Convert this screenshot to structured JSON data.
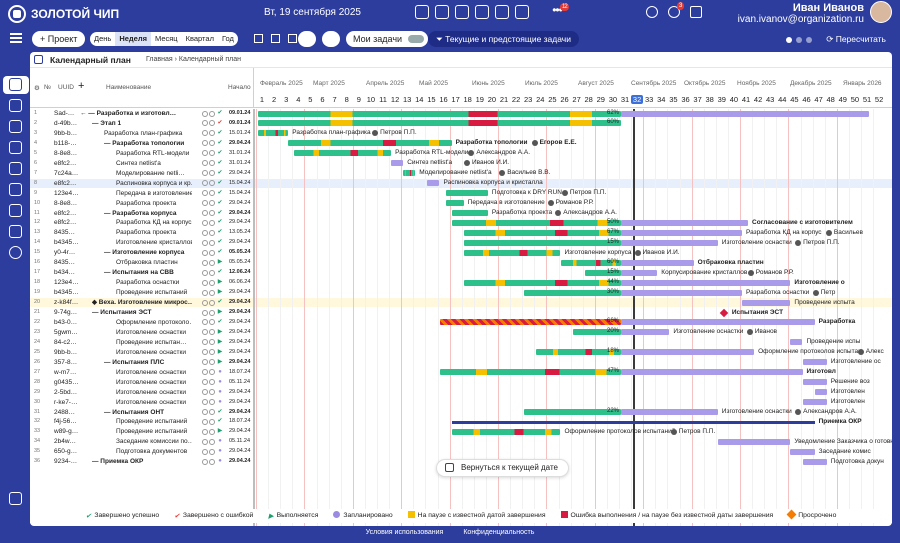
{
  "header": {
    "brand": "ЗОЛОТОЙ ЧИП",
    "date": "Вт, 19 сентября 2025",
    "more_badge": "12",
    "bell_badge": "3",
    "user_name": "Иван Иванов",
    "user_email": "ivan.ivanov@organization.ru"
  },
  "toolbar": {
    "project_btn": "+ Проект",
    "periods": [
      "День",
      "Неделя",
      "Месяц",
      "Квартал",
      "Год"
    ],
    "active_period": "Неделя",
    "my_tasks": "Мои задачи",
    "filter": "Текущие и предстоящие задачи",
    "recalc": "Пересчитать"
  },
  "page": {
    "title": "Календарный план",
    "crumb_home": "Главная",
    "crumb_sep": "›",
    "crumb_current": "Календарный план"
  },
  "columns": {
    "uuid": "UUID",
    "name": "Наименование",
    "start": "Начало"
  },
  "months": [
    "Февраль 2025",
    "Март 2025",
    "Апрель 2025",
    "Май 2025",
    "Июнь 2025",
    "Июль 2025",
    "Август 2025",
    "Сентябрь 2025",
    "Октябрь 2025",
    "Ноябрь 2025",
    "Декабрь 2025",
    "Январь 2026"
  ],
  "weeks": [
    "1",
    "2",
    "3",
    "4",
    "5",
    "6",
    "7",
    "8",
    "9",
    "10",
    "11",
    "12",
    "13",
    "14",
    "15",
    "16",
    "17",
    "18",
    "19",
    "20",
    "21",
    "22",
    "23",
    "24",
    "25",
    "26",
    "27",
    "28",
    "29",
    "30",
    "31",
    "32",
    "33",
    "34",
    "35",
    "36",
    "37",
    "38",
    "39",
    "40",
    "41",
    "42",
    "43",
    "44",
    "45",
    "46",
    "47",
    "48",
    "49",
    "50",
    "51",
    "52"
  ],
  "current_week": "32",
  "rows": [
    {
      "n": "1",
      "uuid": "Sad-…",
      "name": "← — Разработка и изготовл…",
      "lvl": 0,
      "bold": true,
      "st": "ok",
      "date": "09.01.24"
    },
    {
      "n": "2",
      "uuid": "d-49b…",
      "name": "— Этап 1",
      "lvl": 1,
      "bold": true,
      "st": "err",
      "date": "09.01.24"
    },
    {
      "n": "3",
      "uuid": "9bb-b…",
      "name": "Разработка план-графика",
      "lvl": 2,
      "st": "ok",
      "date": "15.01.24"
    },
    {
      "n": "4",
      "uuid": "b118-…",
      "name": "— Разработка топологии",
      "lvl": 2,
      "bold": true,
      "st": "ok",
      "date": "29.04.24"
    },
    {
      "n": "5",
      "uuid": "8-8e8…",
      "name": "Разработка RTL-модели",
      "lvl": 3,
      "st": "ok",
      "date": "31.01.24"
    },
    {
      "n": "6",
      "uuid": "e8fc2…",
      "name": "Синтез netlist'а",
      "lvl": 3,
      "st": "ok",
      "date": "31.01.24"
    },
    {
      "n": "7",
      "uuid": "7c24a…",
      "name": "Моделирование netli…",
      "lvl": 3,
      "st": "ok",
      "date": "29.04.24"
    },
    {
      "n": "8",
      "uuid": "e8fc2…",
      "name": "Распиновка корпуса и кр…",
      "lvl": 3,
      "st": "ok",
      "date": "15.04.24"
    },
    {
      "n": "9",
      "uuid": "123e4…",
      "name": "Передача в изготовление",
      "lvl": 3,
      "st": "ok",
      "date": "15.04.24"
    },
    {
      "n": "10",
      "uuid": "8-8e8…",
      "name": "Разработка проекта",
      "lvl": 3,
      "st": "ok",
      "date": "29.04.24"
    },
    {
      "n": "11",
      "uuid": "e8fc2…",
      "name": "— Разработка корпуса",
      "lvl": 2,
      "bold": true,
      "st": "ok",
      "date": "29.04.24"
    },
    {
      "n": "12",
      "uuid": "e8fc2…",
      "name": "Разработка КД на корпус",
      "lvl": 3,
      "st": "ok",
      "date": "29.04.24"
    },
    {
      "n": "13",
      "uuid": "8435…",
      "name": "Разработка проекта",
      "lvl": 3,
      "st": "ok",
      "date": "13.05.24"
    },
    {
      "n": "14",
      "uuid": "b4345…",
      "name": "Изготовление кристаллов",
      "lvl": 3,
      "st": "ok",
      "date": "29.04.24"
    },
    {
      "n": "15",
      "uuid": "y0-4r…",
      "name": "— Изготовление корпуса",
      "lvl": 2,
      "bold": true,
      "st": "ok",
      "date": "05.05.24"
    },
    {
      "n": "16",
      "uuid": "8435…",
      "name": "Отбраковка пластин",
      "lvl": 3,
      "st": "run",
      "date": "05.05.24"
    },
    {
      "n": "17",
      "uuid": "b434…",
      "name": "— Испытания на СВВ",
      "lvl": 2,
      "bold": true,
      "st": "ok",
      "date": "12.06.24"
    },
    {
      "n": "18",
      "uuid": "123e4…",
      "name": "Разработка оснастки",
      "lvl": 3,
      "st": "run",
      "date": "06.06.24"
    },
    {
      "n": "19",
      "uuid": "b4345…",
      "name": "Проведение испытаний",
      "lvl": 3,
      "st": "run",
      "date": "29.04.24"
    },
    {
      "n": "20",
      "uuid": "z-k84f…",
      "name": "◆ Веха. Изготовление микрос…",
      "lvl": 1,
      "bold": true,
      "st": "ok",
      "date": "29.04.24"
    },
    {
      "n": "21",
      "uuid": "9-74g…",
      "name": "— Испытания ЭСТ",
      "lvl": 1,
      "bold": true,
      "st": "run",
      "date": "29.04.24"
    },
    {
      "n": "22",
      "uuid": "b43-0…",
      "name": "Оформление протоколо…",
      "lvl": 3,
      "st": "ok",
      "date": "29.04.24"
    },
    {
      "n": "23",
      "uuid": "5gwm…",
      "name": "Изготовление оснастки",
      "lvl": 3,
      "st": "run",
      "date": "29.04.24"
    },
    {
      "n": "24",
      "uuid": "84-c2…",
      "name": "Проведение испытан…",
      "lvl": 3,
      "st": "run",
      "date": "29.04.24"
    },
    {
      "n": "25",
      "uuid": "9bb-b…",
      "name": "Изготовление оснастки",
      "lvl": 3,
      "st": "run",
      "date": "29.04.24"
    },
    {
      "n": "26",
      "uuid": "357-8…",
      "name": "— Испытания ПЛС",
      "lvl": 2,
      "bold": true,
      "st": "run",
      "date": "29.04.24"
    },
    {
      "n": "27",
      "uuid": "w-m7…",
      "name": "Изготовление оснастки",
      "lvl": 3,
      "st": "plan",
      "date": "18.07.24"
    },
    {
      "n": "28",
      "uuid": "g0435…",
      "name": "Изготовление оснастки",
      "lvl": 3,
      "st": "plan",
      "date": "05.11.24"
    },
    {
      "n": "29",
      "uuid": "2-5bd…",
      "name": "Изготовление оснастки",
      "lvl": 3,
      "st": "plan",
      "date": "29.04.24"
    },
    {
      "n": "30",
      "uuid": "r-ke7-…",
      "name": "Изготовление оснастки",
      "lvl": 3,
      "st": "plan",
      "date": "29.04.24"
    },
    {
      "n": "31",
      "uuid": "2488…",
      "name": "— Испытания ОНТ",
      "lvl": 2,
      "bold": true,
      "st": "ok",
      "date": "29.04.24"
    },
    {
      "n": "32",
      "uuid": "f4j-56…",
      "name": "Проведение испытаний",
      "lvl": 3,
      "st": "ok",
      "date": "18.07.24"
    },
    {
      "n": "33",
      "uuid": "w89-g…",
      "name": "Проведение испытаний",
      "lvl": 3,
      "st": "run",
      "date": "29.04.24"
    },
    {
      "n": "34",
      "uuid": "2b4w…",
      "name": "Заседание комиссии по…",
      "lvl": 3,
      "st": "plan",
      "date": "05.11.24"
    },
    {
      "n": "35",
      "uuid": "650-g…",
      "name": "Подготовка документов",
      "lvl": 3,
      "st": "plan",
      "date": "29.04.24"
    },
    {
      "n": "36",
      "uuid": "9234-…",
      "name": "— Приемка ОКР",
      "lvl": 1,
      "bold": true,
      "st": "plan",
      "date": "29.04.24"
    }
  ],
  "bars": [
    {
      "r": 0,
      "s": 1,
      "e": 31,
      "type": "mix",
      "pct": "62%",
      "sub": "plan",
      "se": 51.5
    },
    {
      "r": 1,
      "s": 1,
      "e": 31,
      "type": "mix",
      "pct": "60%"
    },
    {
      "r": 2,
      "s": 1,
      "e": 3.5,
      "type": "mix",
      "label": "Разработка план-графика",
      "person": "Петров П.П."
    },
    {
      "r": 3,
      "s": 3.5,
      "e": 17,
      "type": "mix",
      "label": "Разработка топологии",
      "person": "Егоров Е.Е.",
      "boldlbl": true
    },
    {
      "r": 4,
      "s": 4,
      "e": 12,
      "type": "mix",
      "label": "Разработка RTL-модели",
      "person": "Александров А.А."
    },
    {
      "r": 5,
      "s": 12,
      "e": 13,
      "type": "plan",
      "label": "Синтез netlist'а",
      "person": "Иванов И.И."
    },
    {
      "r": 6,
      "s": 13,
      "e": 14,
      "type": "mix",
      "label": "Моделирование netlist'а",
      "person": "Васильев В.В."
    },
    {
      "r": 7,
      "s": 15,
      "e": 16,
      "type": "plan",
      "label": "Распиновка корпуса и кристалла",
      "person": ""
    },
    {
      "r": 8,
      "s": 16.5,
      "e": 20,
      "type": "green",
      "label": "Подготовка к DRY RUN",
      "person": "Петров П.П."
    },
    {
      "r": 9,
      "s": 16.5,
      "e": 18,
      "type": "green",
      "label": "Передача в изготовление",
      "person": "Романов Р.Р."
    },
    {
      "r": 10,
      "s": 17,
      "e": 20,
      "type": "green",
      "label": "Разработка проекта",
      "person": "Александров А.А."
    },
    {
      "r": 11,
      "s": 17,
      "e": 31,
      "type": "mix",
      "pct": "50%",
      "sub": "plan",
      "se": 41.5,
      "rlabel": "Согласование с изготовителем"
    },
    {
      "r": 12,
      "s": 18,
      "e": 31,
      "type": "mix",
      "pct": "67%",
      "sub": "plan",
      "se": 41,
      "label": "Разработка КД на корпус",
      "person": "Васильев"
    },
    {
      "r": 13,
      "s": 18,
      "e": 31,
      "type": "green",
      "pct": "15%",
      "sub": "plan",
      "se": 39,
      "label": "Изготовление оснастки",
      "person": "Петров П.П."
    },
    {
      "r": 14,
      "s": 18,
      "e": 26,
      "type": "mix",
      "label": "Изготовление корпуса",
      "person": "Иванов И.И."
    },
    {
      "r": 15,
      "s": 26,
      "e": 31,
      "type": "mix",
      "pct": "60%",
      "sub": "plan",
      "se": 37,
      "rlabel": "Отбраковка пластин"
    },
    {
      "r": 16,
      "s": 28,
      "e": 31,
      "type": "green",
      "pct": "15%",
      "sub": "plan",
      "se": 34,
      "label": "Корпусирование кристаллов",
      "person": "Романов Р.Р."
    },
    {
      "r": 17,
      "s": 18,
      "e": 31,
      "type": "mix",
      "pct": "44%",
      "sub": "plan",
      "se": 45,
      "rlabel": "Изготовление о"
    },
    {
      "r": 18,
      "s": 23,
      "e": 31,
      "type": "green",
      "pct": "30%",
      "sub": "plan",
      "se": 41,
      "label": "Разработка оснастки",
      "person": "Петр"
    },
    {
      "r": 19,
      "s": 41,
      "e": 45,
      "type": "plan",
      "label": "Проведение испыта"
    },
    {
      "r": 20,
      "s": 39.5,
      "e": 39.5,
      "type": "ms",
      "rlabel": "Испытания ЭСТ"
    },
    {
      "r": 21,
      "s": 16,
      "e": 31,
      "type": "over",
      "pct": "66%",
      "sub": "plan",
      "se": 47,
      "rlabel": "Разработка"
    },
    {
      "r": 22,
      "s": 27,
      "e": 31,
      "type": "green",
      "pct": "20%",
      "sub": "plan",
      "se": 35,
      "label": "Изготовление оснастки",
      "person": "Иванов"
    },
    {
      "r": 23,
      "s": 45,
      "e": 46,
      "type": "plan",
      "label": "Проведение испы"
    },
    {
      "r": 24,
      "s": 24,
      "e": 31,
      "type": "mix",
      "pct": "18%",
      "sub": "plan",
      "se": 42,
      "label": "Оформление протоколов испытан",
      "person": "Алекс"
    },
    {
      "r": 25,
      "s": 46,
      "e": 48,
      "type": "plan",
      "label": "Изготовление ос"
    },
    {
      "r": 26,
      "s": 16,
      "e": 31,
      "type": "mix",
      "pct": "47%",
      "sub": "plan",
      "se": 46,
      "rlabel": "Изготовл"
    },
    {
      "r": 27,
      "s": 46,
      "e": 48,
      "type": "plan",
      "label": "Решение воз"
    },
    {
      "r": 28,
      "s": 47,
      "e": 48,
      "type": "plan",
      "label": "Изготовлен"
    },
    {
      "r": 29,
      "s": 46,
      "e": 48,
      "type": "plan",
      "label": "Изготовлен"
    },
    {
      "r": 30,
      "s": 23,
      "e": 31,
      "type": "green",
      "pct": "22%",
      "sub": "plan",
      "se": 39,
      "label": "Изготовление оснастки",
      "person": "Александров А.А."
    },
    {
      "r": 31,
      "s": 17,
      "e": 47,
      "type": "bracket",
      "rlabel": "Приемка ОКР"
    },
    {
      "r": 32,
      "s": 17,
      "e": 26,
      "type": "mix",
      "label": "Оформление протоколов испытаний",
      "person": "Петров П.П."
    },
    {
      "r": 33,
      "s": 39,
      "e": 45,
      "type": "plan",
      "label": "Уведомление Заказчика о готовности"
    },
    {
      "r": 34,
      "s": 45,
      "e": 47,
      "type": "plan",
      "label": "Заседание комис"
    },
    {
      "r": 35,
      "s": 46,
      "e": 48,
      "type": "plan",
      "label": "Подготовка докун"
    },
    {
      "r": 36,
      "s": 31,
      "e": 31,
      "type": "none"
    }
  ],
  "back_button": "Вернуться к текущей дате",
  "legend": [
    {
      "label": "Завершено успешно",
      "color": "#1aa06b",
      "shape": "check"
    },
    {
      "label": "Завершено с ошибкой",
      "color": "#e53935",
      "shape": "check"
    },
    {
      "label": "Выполняется",
      "color": "#1aa06b",
      "shape": "tri"
    },
    {
      "label": "Запланировано",
      "color": "#9b8be0",
      "shape": "dot"
    },
    {
      "label": "На паузе с известной датой завершения",
      "color": "#f5c000",
      "shape": "sq"
    },
    {
      "label": "Ошибка выполнения / на паузе без известной даты завершения",
      "color": "#d81b40",
      "shape": "sq"
    },
    {
      "label": "Просрочено",
      "color": "#f57c00",
      "shape": "diamond"
    }
  ],
  "footer": {
    "terms": "Условия использования",
    "privacy": "Конфиденциальность"
  },
  "colors": {
    "green": "#2ec08b",
    "plan": "#a99bea",
    "yellow": "#f5c000",
    "red": "#d81b40",
    "accent": "#2d3d9e"
  }
}
